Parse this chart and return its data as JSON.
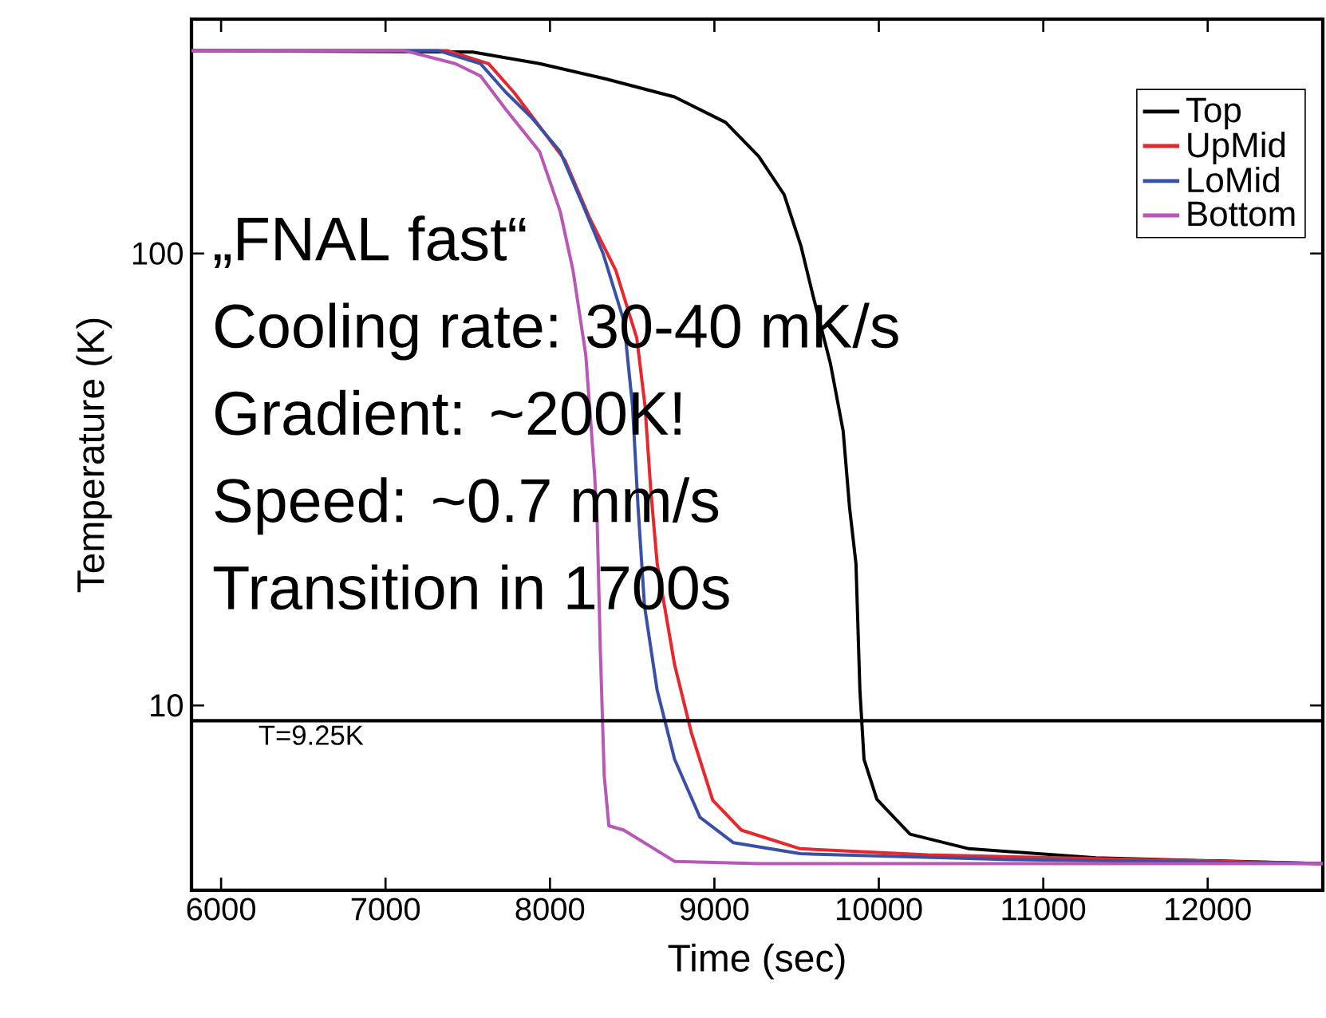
{
  "chart_data": {
    "type": "line",
    "xlabel": "Time (sec)",
    "ylabel": "Temperature (K)",
    "log": "y",
    "legend": "top right",
    "line_style": "solid",
    "marker": "none",
    "xlim": [
      5820,
      12700
    ],
    "ylim": [
      3.9,
      330
    ],
    "xticks": [
      6000,
      7000,
      8000,
      9000,
      10000,
      11000,
      12000
    ],
    "yticks": [
      10,
      100
    ],
    "series": [
      {
        "name": "Top",
        "color": "#000000",
        "x": [
          5820,
          7530,
          7937,
          8347,
          8758,
          9068,
          9270,
          9424,
          9526,
          9600,
          9706,
          9783,
          9822,
          9861,
          9885,
          9910,
          9988,
          10190,
          10548,
          11320,
          12700
        ],
        "values": [
          281,
          279,
          263,
          243,
          222,
          195,
          164,
          135,
          104,
          80.6,
          57,
          40.5,
          27.4,
          20.6,
          10.8,
          7.6,
          6.2,
          5.19,
          4.82,
          4.6,
          4.47
        ]
      },
      {
        "name": "UpMid",
        "color": "#e8262b",
        "x": [
          5820,
          7375,
          7627,
          7782,
          7937,
          8090,
          8245,
          8400,
          8528,
          8578,
          8613,
          8652,
          8758,
          8860,
          8990,
          9164,
          9522,
          10296,
          12700
        ],
        "values": [
          281,
          281,
          263,
          227,
          191,
          161,
          119,
          91.8,
          65,
          46,
          30,
          20.6,
          12.3,
          8.7,
          6.17,
          5.3,
          4.82,
          4.67,
          4.47
        ]
      },
      {
        "name": "LoMid",
        "color": "#3a4fa8",
        "x": [
          5820,
          7323,
          7578,
          7733,
          7888,
          8062,
          8193,
          8323,
          8449,
          8502,
          8536,
          8575,
          8652,
          8758,
          8912,
          9116,
          9522,
          10807,
          12700
        ],
        "values": [
          281,
          281,
          263,
          227,
          200,
          168,
          130,
          100,
          71,
          46,
          27.4,
          16.6,
          10.8,
          7.6,
          5.66,
          4.97,
          4.7,
          4.56,
          4.47
        ]
      },
      {
        "name": "Bottom",
        "color": "#b857b5",
        "x": [
          5820,
          7115,
          7424,
          7578,
          7733,
          7937,
          8062,
          8140,
          8218,
          8271,
          8287,
          8306,
          8330,
          8358,
          8449,
          8758,
          9270,
          12700
        ],
        "values": [
          281,
          281,
          263,
          247,
          208,
          168,
          124,
          91.8,
          59.6,
          32.6,
          25.6,
          13.4,
          7.0,
          5.42,
          5.3,
          4.52,
          4.47,
          4.47
        ]
      }
    ],
    "ref_lines": [
      {
        "axis": "y",
        "value": 9.25,
        "label": "T=9.25K",
        "color": "#000000",
        "line_style": "solid"
      }
    ],
    "annotations": [
      "„FNAL fast“",
      "Cooling rate: 30-40 mK/s",
      "Gradient: ~200K!",
      "Speed: ~0.7 mm/s",
      "Transition in 1700s"
    ]
  }
}
